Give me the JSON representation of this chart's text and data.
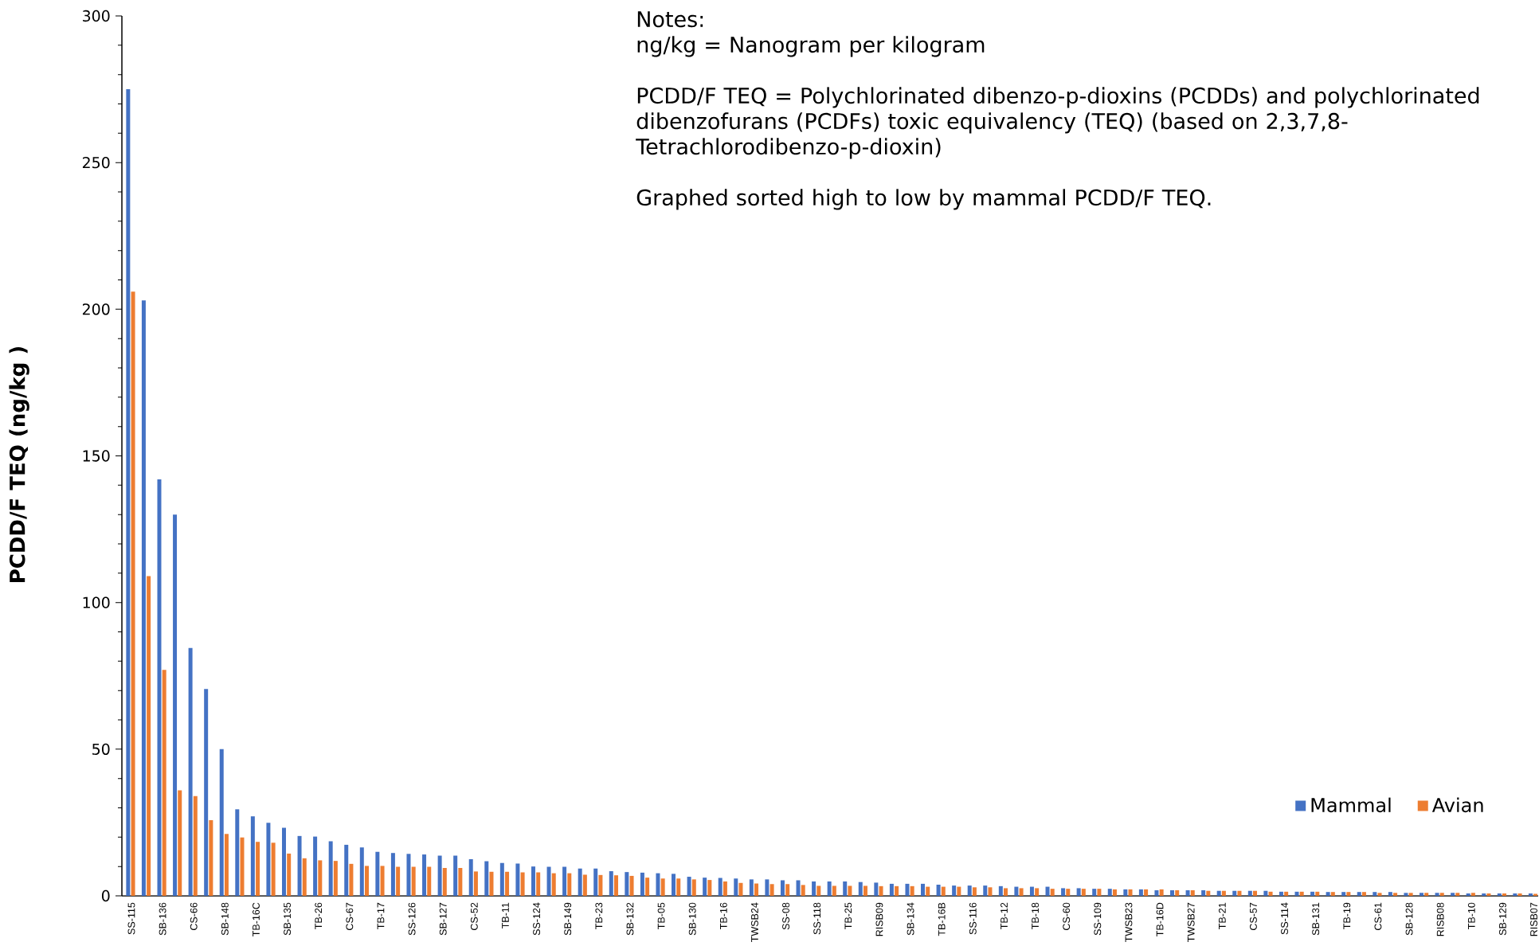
{
  "chart_data": {
    "type": "bar",
    "ylabel": "PCDD/F TEQ (ng/kg )",
    "annotations": [
      "Notes:",
      "ng/kg = Nanogram per kilogram",
      "PCDD/F TEQ = Polychlorinated dibenzo-p-dioxins (PCDDs) and polychlorinated dibenzofurans (PCDFs) toxic equivalency (TEQ) (based on 2,3,7,8-Tetrachlorodibenzo-p-dioxin)",
      "Graphed sorted high to low by mammal PCDD/F TEQ."
    ],
    "categories": [
      "SS-115",
      null,
      "SB-136",
      null,
      "CS-66",
      null,
      "SB-148",
      null,
      "TB-16C",
      null,
      "SB-135",
      null,
      "TB-26",
      null,
      "CS-67",
      null,
      "TB-17",
      null,
      "SS-126",
      null,
      "SB-127",
      null,
      "CS-52",
      null,
      "TB-11",
      null,
      "SS-124",
      null,
      "SB-149",
      null,
      "TB-23",
      null,
      "SB-132",
      null,
      "TB-05",
      null,
      "SB-130",
      null,
      "TB-16",
      null,
      "TWSB24",
      null,
      "SS-08",
      null,
      "SS-118",
      null,
      "TB-25",
      null,
      "RISB09",
      null,
      "SB-134",
      null,
      "TB-16B",
      null,
      "SS-116",
      null,
      "TB-12",
      null,
      "TB-18",
      null,
      "CS-60",
      null,
      "SS-109",
      null,
      "TWSB23",
      null,
      "TB-16D",
      null,
      "TWSB27",
      null,
      "TB-21",
      null,
      "CS-57",
      null,
      "SS-114",
      null,
      "SB-131",
      null,
      "TB-19",
      null,
      "CS-61",
      null,
      "SB-128",
      null,
      "RISB08",
      null,
      "TB-10",
      null,
      "SB-129",
      null,
      "RISB07"
    ],
    "series": [
      {
        "name": "Mammal",
        "color": "#4472c4",
        "values": [
          275,
          203,
          142,
          130,
          84.5,
          70.5,
          50,
          29.5,
          27.1,
          24.9,
          23.2,
          20.4,
          20.2,
          18.6,
          17.4,
          16.5,
          15.0,
          14.6,
          14.3,
          14.1,
          13.7,
          13.7,
          12.5,
          11.8,
          11.2,
          11.0,
          10.0,
          9.9,
          9.9,
          9.3,
          9.3,
          8.4,
          8.1,
          7.9,
          7.7,
          7.5,
          6.5,
          6.2,
          6.1,
          5.9,
          5.6,
          5.6,
          5.3,
          5.3,
          4.9,
          4.9,
          4.9,
          4.7,
          4.5,
          4.1,
          4.1,
          4.1,
          3.8,
          3.5,
          3.5,
          3.5,
          3.3,
          3.1,
          3.1,
          3.1,
          2.6,
          2.6,
          2.4,
          2.4,
          2.2,
          2.2,
          1.9,
          1.9,
          1.9,
          1.9,
          1.7,
          1.7,
          1.7,
          1.7,
          1.4,
          1.4,
          1.4,
          1.3,
          1.3,
          1.3,
          1.3,
          1.3,
          1.0,
          1.0,
          1.0,
          1.0,
          0.8,
          0.8,
          0.8,
          0.8,
          0.8
        ]
      },
      {
        "name": "Avian",
        "color": "#ed7d31",
        "values": [
          206,
          109,
          77,
          36,
          34,
          25.8,
          21.1,
          19.9,
          18.4,
          18.1,
          14.4,
          12.8,
          12.1,
          11.9,
          10.9,
          10.2,
          10.2,
          9.9,
          9.9,
          9.9,
          9.5,
          9.5,
          8.3,
          8.2,
          8.2,
          8.0,
          8.0,
          7.7,
          7.7,
          7.2,
          7.1,
          7.0,
          6.8,
          6.2,
          5.9,
          5.9,
          5.6,
          5.4,
          4.9,
          4.4,
          4.2,
          4.0,
          4.0,
          3.7,
          3.4,
          3.4,
          3.4,
          3.4,
          3.3,
          3.3,
          3.3,
          3.1,
          3.1,
          3.1,
          2.9,
          2.9,
          2.6,
          2.6,
          2.6,
          2.4,
          2.4,
          2.4,
          2.4,
          2.2,
          2.2,
          2.2,
          2.2,
          1.9,
          1.9,
          1.7,
          1.7,
          1.7,
          1.7,
          1.4,
          1.4,
          1.4,
          1.4,
          1.3,
          1.3,
          1.3,
          1.0,
          1.0,
          1.0,
          1.0,
          1.0,
          1.0,
          1.0,
          0.8,
          0.8,
          0.8,
          0.7
        ]
      }
    ],
    "ylim": [
      0,
      300
    ],
    "yticks": [
      0,
      {
        "value": 10,
        "label": null
      },
      {
        "value": 20,
        "label": null
      },
      {
        "value": 30,
        "label": null
      },
      {
        "value": 40,
        "label": null
      },
      50,
      {
        "value": 60,
        "label": null
      },
      {
        "value": 70,
        "label": null
      },
      {
        "value": 80,
        "label": null
      },
      {
        "value": 90,
        "label": null
      },
      100,
      {
        "value": 110,
        "label": null
      },
      {
        "value": 120,
        "label": null
      },
      {
        "value": 130,
        "label": null
      },
      {
        "value": 140,
        "label": null
      },
      150,
      {
        "value": 160,
        "label": null
      },
      {
        "value": 170,
        "label": null
      },
      {
        "value": 180,
        "label": null
      },
      {
        "value": 190,
        "label": null
      },
      200,
      {
        "value": 210,
        "label": null
      },
      {
        "value": 220,
        "label": null
      },
      {
        "value": 230,
        "label": null
      },
      {
        "value": 240,
        "label": null
      },
      250,
      {
        "value": 260,
        "label": null
      },
      {
        "value": 270,
        "label": null
      },
      {
        "value": 280,
        "label": null
      },
      {
        "value": 290,
        "label": null
      },
      300
    ],
    "legend": "bottom right"
  }
}
